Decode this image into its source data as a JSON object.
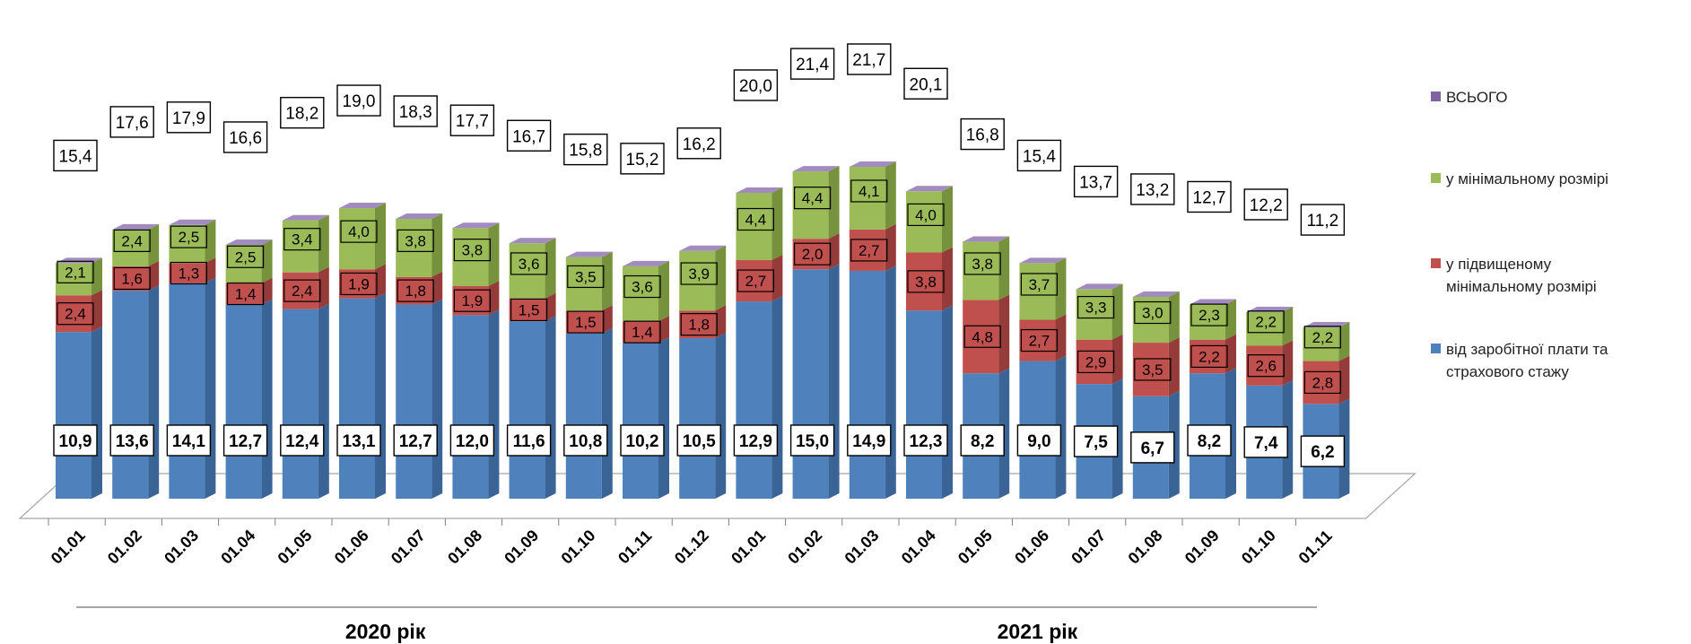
{
  "chart_data": {
    "type": "bar",
    "stacked": true,
    "three_d": true,
    "categories": [
      "01.01",
      "01.02",
      "01.03",
      "01.04",
      "01.05",
      "01.06",
      "01.07",
      "01.08",
      "01.09",
      "01.10",
      "01.11",
      "01.12",
      "01.01",
      "01.02",
      "01.03",
      "01.04",
      "01.05",
      "01.06",
      "01.07",
      "01.08",
      "01.09",
      "01.10",
      "01.11"
    ],
    "groups": [
      {
        "label": "2020 рік",
        "count": 12
      },
      {
        "label": "2021 рік",
        "count": 11
      }
    ],
    "series": [
      {
        "name": "від заробітної плати та страхового стажу",
        "color": "#4F81BD",
        "side": "#3A6496",
        "top": "#7FA3D4",
        "label_bold": true,
        "values": [
          "10,9",
          "13,6",
          "14,1",
          "12,7",
          "12,4",
          "13,1",
          "12,7",
          "12,0",
          "11,6",
          "10,8",
          "10,2",
          "10,5",
          "12,9",
          "15,0",
          "14,9",
          "12,3",
          "8,2",
          "9,0",
          "7,5",
          "6,7",
          "8,2",
          "7,4",
          "6,2"
        ]
      },
      {
        "name": "у підвищеному мінімальному розмірі",
        "color": "#C0504D",
        "side": "#953B39",
        "top": "#D98482",
        "label_bold": false,
        "values": [
          "2,4",
          "1,6",
          "1,3",
          "1,4",
          "2,4",
          "1,9",
          "1,8",
          "1,9",
          "1,5",
          "1,5",
          "1,4",
          "1,8",
          "2,7",
          "2,0",
          "2,7",
          "3,8",
          "4,8",
          "2,7",
          "2,9",
          "3,5",
          "2,2",
          "2,6",
          "2,8"
        ]
      },
      {
        "name": "у мінімальному розмірі",
        "color": "#9BBB59",
        "side": "#76923C",
        "top": "#B8D088",
        "label_bold": false,
        "values": [
          "2,1",
          "2,4",
          "2,5",
          "2,5",
          "3,4",
          "4,0",
          "3,8",
          "3,8",
          "3,6",
          "3,5",
          "3,6",
          "3,9",
          "4,4",
          "4,4",
          "4,1",
          "4,0",
          "3,8",
          "3,7",
          "3,3",
          "3,0",
          "2,3",
          "2,2",
          "2,2"
        ]
      },
      {
        "name": "ВСЬОГО",
        "color": "#8064A2",
        "side": "#604A7B",
        "top": "#A28BBF",
        "label_bold": false,
        "values": [
          "15,4",
          "17,6",
          "17,9",
          "16,6",
          "18,2",
          "19,0",
          "18,3",
          "17,7",
          "16,7",
          "15,8",
          "15,2",
          "16,2",
          "20,0",
          "21,4",
          "21,7",
          "20,1",
          "16,8",
          "15,4",
          "13,7",
          "13,2",
          "12,7",
          "12,2",
          "11,2"
        ]
      }
    ],
    "legend": {
      "position": "right",
      "items": [
        {
          "lines": [
            "ВСЬОГО"
          ],
          "color": "#8064A2"
        },
        {
          "lines": [
            "у мінімальному розмірі"
          ],
          "color": "#9BBB59"
        },
        {
          "lines": [
            "у підвищеному",
            "мінімальному розмірі"
          ],
          "color": "#C0504D"
        },
        {
          "lines": [
            "від заробітної плати та",
            "страхового стажу"
          ],
          "color": "#4F81BD"
        }
      ]
    },
    "xlabel": "",
    "ylabel": "",
    "grid": false
  }
}
